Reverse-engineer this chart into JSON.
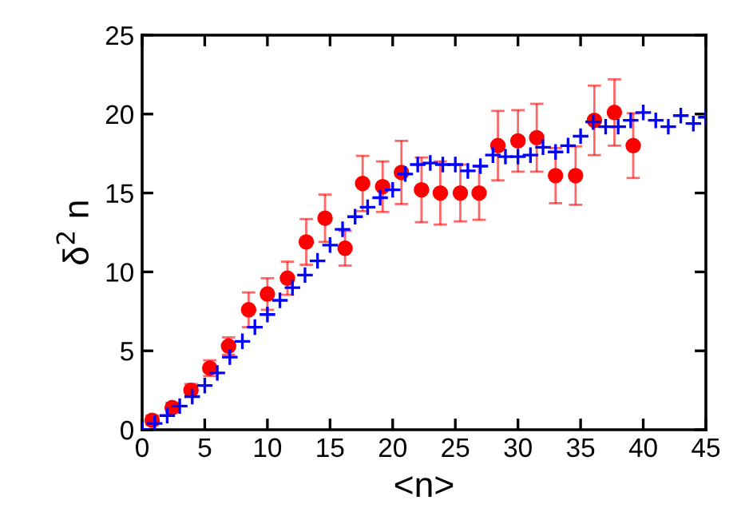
{
  "chart_data": {
    "type": "scatter",
    "xlabel": "<n>",
    "ylabel": "δ$^{2}$ n",
    "xlim": [
      0,
      45
    ],
    "ylim": [
      0,
      25
    ],
    "xticks": [
      0,
      5,
      10,
      15,
      20,
      25,
      30,
      35,
      40,
      45
    ],
    "yticks": [
      0,
      5,
      10,
      15,
      20,
      25
    ],
    "grid": false,
    "legend": false,
    "series": [
      {
        "color": "#0000ff",
        "marker": "cross",
        "x": [
          0,
          1,
          2,
          3,
          4,
          5,
          6,
          7,
          8,
          9,
          10,
          11,
          12,
          13,
          14,
          15,
          16,
          17,
          18,
          19,
          20,
          21,
          22,
          23,
          24,
          25,
          26,
          27,
          28,
          29,
          30,
          31,
          32,
          33,
          34,
          35,
          36,
          37,
          38,
          39,
          40,
          41,
          42,
          43,
          44,
          45
        ],
        "values": [
          0,
          0.4,
          0.9,
          1.5,
          2.1,
          2.8,
          3.6,
          4.6,
          5.6,
          6.5,
          7.3,
          8.2,
          9.0,
          9.8,
          10.7,
          11.7,
          12.7,
          13.5,
          14.1,
          14.7,
          15.2,
          16.2,
          16.8,
          16.9,
          16.8,
          16.8,
          16.4,
          16.7,
          17.4,
          17.3,
          17.3,
          17.4,
          17.9,
          17.6,
          18.0,
          18.6,
          19.5,
          19.2,
          19.2,
          19.6,
          20.1,
          19.6,
          19.2,
          19.9,
          19.4,
          19.8
        ]
      },
      {
        "color": "#ff0000",
        "marker": "circle",
        "x": [
          0.8,
          2.4,
          3.9,
          5.4,
          6.9,
          8.5,
          10.0,
          11.6,
          13.1,
          14.6,
          16.2,
          17.6,
          19.2,
          20.7,
          22.3,
          23.8,
          25.4,
          26.9,
          28.4,
          30.0,
          31.5,
          33.0,
          34.6,
          36.1,
          37.7,
          39.2
        ],
        "values": [
          0.6,
          1.4,
          2.5,
          3.9,
          5.3,
          7.6,
          8.6,
          9.6,
          11.9,
          13.4,
          11.5,
          15.6,
          15.4,
          16.3,
          15.2,
          15.0,
          15.0,
          15.0,
          18.0,
          18.3,
          18.5,
          16.1,
          16.1,
          19.6,
          20.1,
          18.0
        ],
        "errors": [
          0.3,
          0.3,
          0.4,
          0.5,
          0.55,
          1.1,
          1.0,
          1.05,
          1.45,
          1.5,
          1.1,
          1.75,
          1.6,
          2.0,
          2.05,
          2.0,
          1.8,
          1.7,
          2.2,
          1.95,
          2.15,
          1.75,
          1.85,
          2.2,
          2.1,
          2.05
        ]
      }
    ]
  }
}
